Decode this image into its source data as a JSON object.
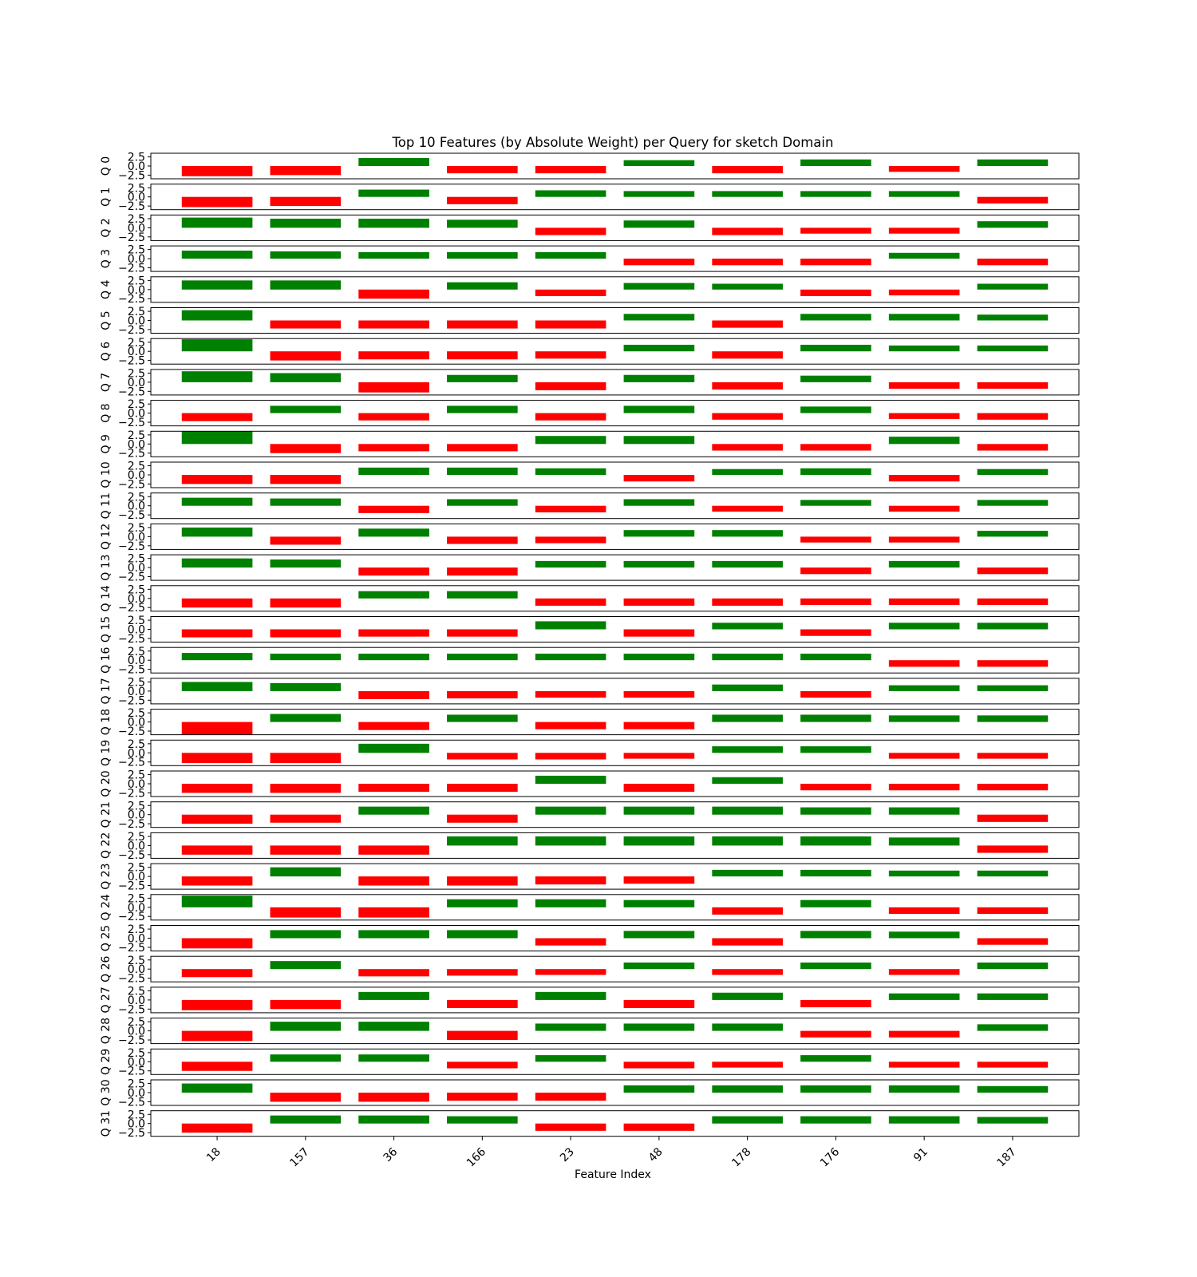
{
  "chart_data": {
    "type": "bar",
    "title": "Top 10 Features (by Absolute Weight) per Query for sketch Domain",
    "xlabel": "Feature Index",
    "categories": [
      "18",
      "157",
      "36",
      "166",
      "23",
      "48",
      "178",
      "176",
      "91",
      "187"
    ],
    "ylim": [
      -3.5,
      3.5
    ],
    "yticks": [
      2.5,
      0.0,
      -2.5
    ],
    "ytick_labels": [
      "2.5",
      "0.0",
      "−2.5"
    ],
    "colors": {
      "positive": "#008000",
      "negative": "#ff0000"
    },
    "grid": false,
    "rows": [
      {
        "label": "Q 0",
        "values": [
          -2.8,
          -2.5,
          2.2,
          -2.0,
          -2.0,
          1.6,
          -2.0,
          1.8,
          -1.6,
          1.8
        ]
      },
      {
        "label": "Q 1",
        "values": [
          -2.8,
          -2.5,
          2.0,
          -2.0,
          1.8,
          1.6,
          1.6,
          1.6,
          1.6,
          -1.8
        ]
      },
      {
        "label": "Q 2",
        "values": [
          2.8,
          2.5,
          2.5,
          2.2,
          -2.0,
          2.0,
          -2.0,
          -1.6,
          -1.6,
          1.8
        ]
      },
      {
        "label": "Q 3",
        "values": [
          2.2,
          2.0,
          1.8,
          1.8,
          1.8,
          -1.8,
          -1.8,
          -1.8,
          1.6,
          -1.8
        ]
      },
      {
        "label": "Q 4",
        "values": [
          2.5,
          2.5,
          -2.5,
          2.0,
          -1.8,
          1.8,
          1.6,
          -1.8,
          -1.6,
          1.6
        ]
      },
      {
        "label": "Q 5",
        "values": [
          2.8,
          -2.2,
          -2.2,
          -2.2,
          -2.2,
          1.8,
          -2.0,
          1.8,
          1.8,
          1.6
        ]
      },
      {
        "label": "Q 6",
        "values": [
          3.3,
          -2.5,
          -2.2,
          -2.2,
          -2.0,
          1.8,
          -2.0,
          1.8,
          1.6,
          1.6
        ]
      },
      {
        "label": "Q 7",
        "values": [
          3.0,
          2.5,
          -2.8,
          2.0,
          -2.2,
          2.0,
          -2.0,
          1.8,
          -1.8,
          -1.8
        ]
      },
      {
        "label": "Q 8",
        "values": [
          -2.2,
          2.0,
          -2.0,
          2.0,
          -2.0,
          2.0,
          -1.8,
          1.8,
          -1.6,
          -1.8
        ]
      },
      {
        "label": "Q 9",
        "values": [
          3.5,
          -2.5,
          -2.0,
          -2.0,
          2.2,
          2.2,
          -1.8,
          -1.8,
          2.0,
          -1.8
        ]
      },
      {
        "label": "Q 10",
        "values": [
          -2.5,
          -2.5,
          2.0,
          2.0,
          1.8,
          -1.8,
          1.6,
          1.8,
          -1.8,
          1.6
        ]
      },
      {
        "label": "Q 11",
        "values": [
          2.2,
          2.0,
          -2.0,
          1.8,
          -1.8,
          1.8,
          -1.6,
          1.6,
          -1.6,
          1.6
        ]
      },
      {
        "label": "Q 12",
        "values": [
          2.5,
          -2.2,
          2.2,
          -2.0,
          -1.8,
          1.8,
          1.8,
          -1.6,
          -1.6,
          1.6
        ]
      },
      {
        "label": "Q 13",
        "values": [
          2.5,
          2.2,
          -2.2,
          -2.2,
          1.8,
          1.8,
          1.8,
          -1.8,
          1.8,
          -1.8
        ]
      },
      {
        "label": "Q 14",
        "values": [
          -2.5,
          -2.5,
          2.0,
          2.0,
          -2.0,
          -2.0,
          -2.0,
          -1.8,
          -1.8,
          -1.8
        ]
      },
      {
        "label": "Q 15",
        "values": [
          -2.2,
          -2.2,
          -2.0,
          -2.0,
          2.2,
          -2.0,
          1.8,
          -1.8,
          1.8,
          1.8
        ]
      },
      {
        "label": "Q 16",
        "values": [
          2.0,
          1.8,
          1.8,
          1.8,
          1.8,
          1.8,
          1.8,
          1.8,
          -1.8,
          -1.8
        ]
      },
      {
        "label": "Q 17",
        "values": [
          2.5,
          2.2,
          -2.2,
          -2.0,
          -1.8,
          -1.8,
          1.8,
          -1.8,
          1.6,
          1.6
        ]
      },
      {
        "label": "Q 18",
        "values": [
          -3.5,
          2.2,
          -2.2,
          2.0,
          -2.0,
          -2.0,
          2.0,
          2.0,
          1.8,
          1.8
        ]
      },
      {
        "label": "Q 19",
        "values": [
          -2.8,
          -2.8,
          2.5,
          -1.8,
          -1.8,
          -1.6,
          1.8,
          1.8,
          -1.6,
          -1.6
        ]
      },
      {
        "label": "Q 20",
        "values": [
          -2.5,
          -2.5,
          -2.2,
          -2.2,
          2.2,
          -2.2,
          1.8,
          -1.8,
          -1.8,
          -1.8
        ]
      },
      {
        "label": "Q 21",
        "values": [
          -2.5,
          -2.2,
          2.2,
          -2.2,
          2.2,
          2.2,
          2.2,
          2.0,
          2.0,
          -2.0
        ]
      },
      {
        "label": "Q 22",
        "values": [
          -2.5,
          -2.5,
          -2.5,
          2.5,
          2.5,
          2.5,
          2.5,
          2.5,
          2.2,
          -2.0
        ]
      },
      {
        "label": "Q 23",
        "values": [
          -2.5,
          2.5,
          -2.5,
          -2.5,
          -2.2,
          -2.0,
          1.8,
          1.8,
          1.6,
          1.6
        ]
      },
      {
        "label": "Q 24",
        "values": [
          3.2,
          -2.8,
          -2.8,
          2.2,
          2.2,
          2.0,
          -2.0,
          2.0,
          -1.8,
          -1.8
        ]
      },
      {
        "label": "Q 25",
        "values": [
          -2.8,
          2.2,
          2.2,
          2.2,
          -2.0,
          2.0,
          -2.0,
          2.0,
          1.8,
          -1.8
        ]
      },
      {
        "label": "Q 26",
        "values": [
          -2.2,
          2.2,
          -2.0,
          -1.8,
          -1.6,
          1.8,
          -1.6,
          1.8,
          -1.6,
          1.8
        ]
      },
      {
        "label": "Q 27",
        "values": [
          -2.8,
          -2.5,
          2.2,
          -2.2,
          2.2,
          -2.2,
          2.0,
          -2.0,
          1.8,
          1.8
        ]
      },
      {
        "label": "Q 28",
        "values": [
          -2.8,
          2.5,
          2.5,
          -2.5,
          2.0,
          2.0,
          2.0,
          -1.8,
          -1.8,
          1.8
        ]
      },
      {
        "label": "Q 29",
        "values": [
          -2.5,
          2.0,
          2.0,
          -1.8,
          1.8,
          -1.8,
          -1.6,
          1.8,
          -1.6,
          -1.6
        ]
      },
      {
        "label": "Q 30",
        "values": [
          2.5,
          -2.5,
          -2.5,
          -2.2,
          -2.2,
          2.0,
          2.0,
          2.0,
          2.0,
          1.8
        ]
      },
      {
        "label": "Q 31",
        "values": [
          -2.5,
          2.2,
          2.2,
          2.0,
          -2.0,
          -2.0,
          2.0,
          2.0,
          2.0,
          1.8
        ]
      }
    ]
  }
}
